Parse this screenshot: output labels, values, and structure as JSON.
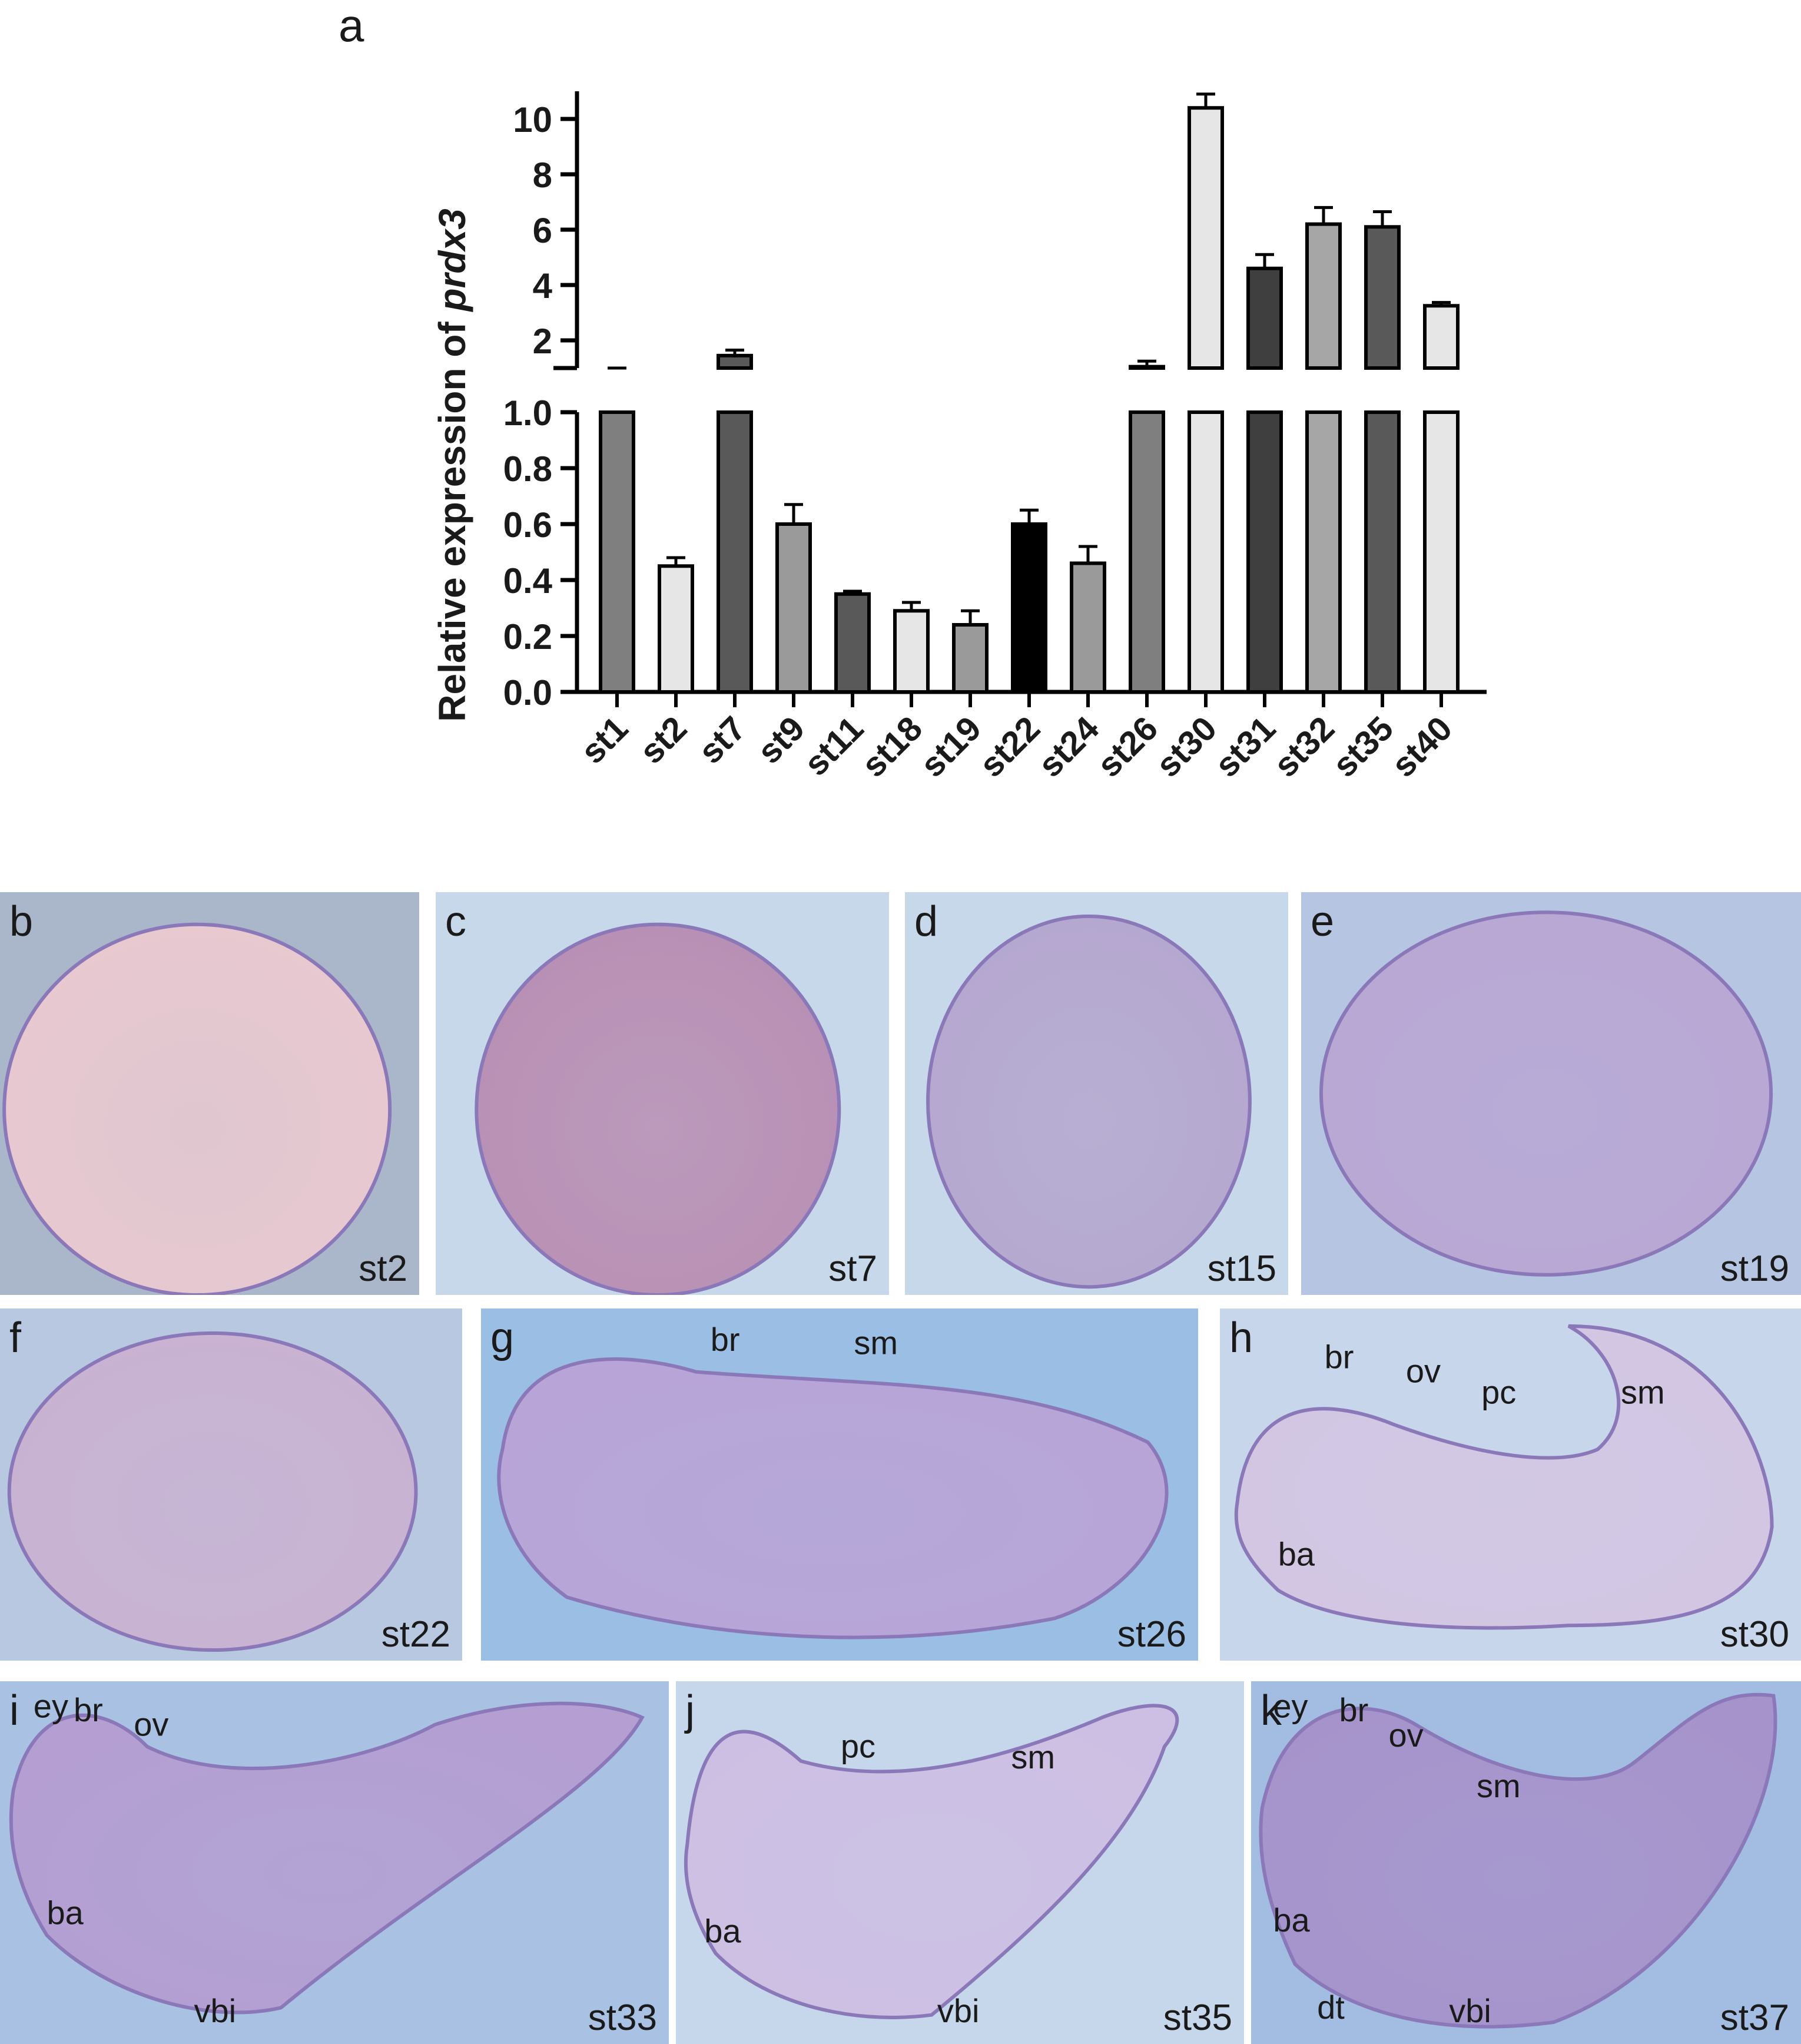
{
  "panel_a_letter": "a",
  "chart_data": {
    "type": "bar",
    "ylabel_prefix": "Relative expression of ",
    "ylabel_gene": "prdx3",
    "categories": [
      "st1",
      "st2",
      "st7",
      "st9",
      "st11",
      "st18",
      "st19",
      "st22",
      "st24",
      "st26",
      "st30",
      "st31",
      "st32",
      "st35",
      "st40"
    ],
    "values": [
      1.0,
      0.45,
      1.45,
      0.6,
      0.35,
      0.29,
      0.24,
      0.6,
      0.46,
      1.05,
      10.4,
      4.6,
      6.2,
      6.1,
      3.25
    ],
    "errors": [
      0.0,
      0.03,
      0.2,
      0.07,
      0.01,
      0.03,
      0.05,
      0.05,
      0.06,
      0.2,
      0.5,
      0.5,
      0.6,
      0.55,
      0.12
    ],
    "colors": [
      "#7f7f7f",
      "#e6e6e6",
      "#595959",
      "#9a9a9a",
      "#595959",
      "#e6e6e6",
      "#9a9a9a",
      "#000000",
      "#9a9a9a",
      "#7f7f7f",
      "#e6e6e6",
      "#3f3f3f",
      "#a6a6a6",
      "#595959",
      "#e6e6e6"
    ],
    "ylim_lower": [
      0,
      1.0
    ],
    "ylim_upper": [
      1.0,
      11
    ],
    "yticks_lower": [
      "0.0",
      "0.2",
      "0.4",
      "0.6",
      "0.8",
      "1.0"
    ],
    "yticks_upper": [
      "2",
      "4",
      "6",
      "8",
      "10"
    ],
    "axis_break": true
  },
  "panels": [
    {
      "letter": "b",
      "stage": "st2",
      "bg": "#aab7cb",
      "embryo": "#e9c9d0",
      "labels": []
    },
    {
      "letter": "c",
      "stage": "st7",
      "bg": "#c6d8ea",
      "embryo": "#b98fb4",
      "labels": []
    },
    {
      "letter": "d",
      "stage": "st15",
      "bg": "#c6d8ea",
      "embryo": "#b5a7cf",
      "labels": []
    },
    {
      "letter": "e",
      "stage": "st19",
      "bg": "#b5c5e2",
      "embryo": "#b9a7d4",
      "labels": []
    },
    {
      "letter": "f",
      "stage": "st22",
      "bg": "#b7c8e0",
      "embryo": "#c9b2d2",
      "labels": []
    },
    {
      "letter": "g",
      "stage": "st26",
      "bg": "#9bbee4",
      "embryo": "#b9a4d7",
      "labels": [
        "br",
        "sm"
      ]
    },
    {
      "letter": "h",
      "stage": "st30",
      "bg": "#c7d6ea",
      "embryo": "#d3c6e3",
      "labels": [
        "br",
        "ov",
        "pc",
        "sm",
        "ba"
      ]
    },
    {
      "letter": "i",
      "stage": "st33",
      "bg": "#a9c1e3",
      "embryo": "#b49ed2",
      "labels": [
        "ey",
        "br",
        "ov",
        "ba",
        "vbi"
      ]
    },
    {
      "letter": "j",
      "stage": "st35",
      "bg": "#c6d7ec",
      "embryo": "#cdbfe3",
      "labels": [
        "pc",
        "sm",
        "ba",
        "vbi"
      ]
    },
    {
      "letter": "k",
      "stage": "st37",
      "bg": "#a3bde2",
      "embryo": "#a693cb",
      "labels": [
        "ey",
        "br",
        "ov",
        "sm",
        "ba",
        "dt",
        "vbi"
      ]
    }
  ]
}
